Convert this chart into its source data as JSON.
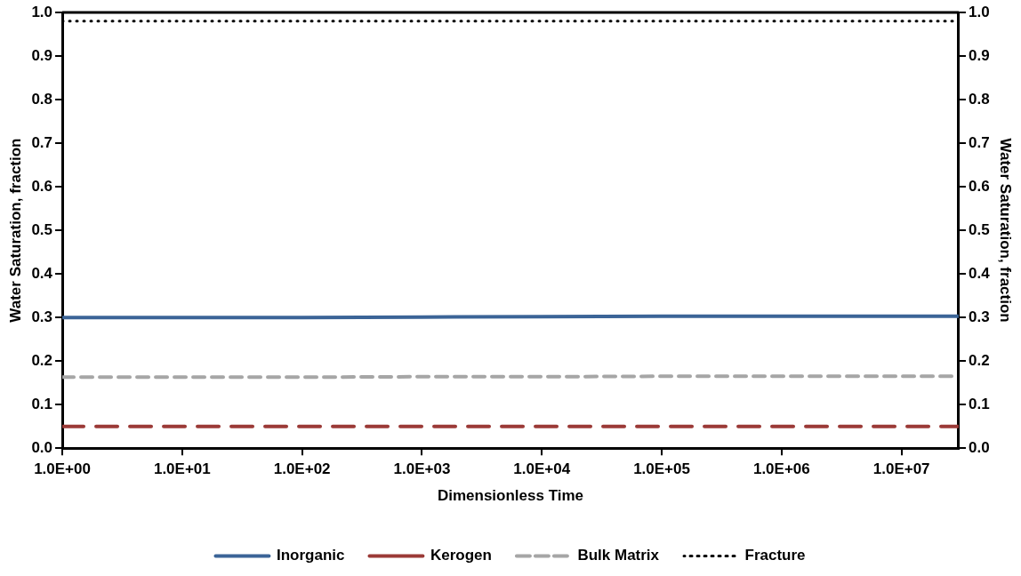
{
  "chart_data": {
    "type": "line",
    "xlabel": "Dimensionless Time",
    "ylabel": "Water Saturation, fraction",
    "y2label": "Water Saturation, fraction",
    "log": "x",
    "grid": false,
    "legend": "bottom",
    "marker": "none",
    "xlim": [
      1,
      30000000
    ],
    "xticks": [
      {
        "value": 1,
        "label": "1.0E+00"
      },
      {
        "value": 10,
        "label": "1.0E+01"
      },
      {
        "value": 100,
        "label": "1.0E+02"
      },
      {
        "value": 1000,
        "label": "1.0E+03"
      },
      {
        "value": 10000,
        "label": "1.0E+04"
      },
      {
        "value": 100000,
        "label": "1.0E+05"
      },
      {
        "value": 1000000,
        "label": "1.0E+06"
      },
      {
        "value": 10000000,
        "label": "1.0E+07"
      }
    ],
    "ylim": [
      0,
      1
    ],
    "yticks": [
      {
        "value": 0,
        "label": "0.0"
      },
      0.1,
      0.2,
      0.3,
      0.4,
      0.5,
      0.6,
      0.7,
      0.8,
      0.9,
      {
        "value": 1,
        "label": "1.0"
      }
    ],
    "y2lim": [
      0,
      1
    ],
    "y2ticks": [
      {
        "value": 0,
        "label": "0.0"
      },
      0.1,
      0.2,
      0.3,
      0.4,
      0.5,
      0.6,
      0.7,
      0.8,
      0.9,
      {
        "value": 1,
        "label": "1.0"
      }
    ],
    "x": [
      1,
      10,
      100,
      1000,
      10000,
      100000,
      1000000,
      10000000,
      30000000
    ],
    "series": [
      {
        "name": "Inorganic",
        "color": "#3b6497",
        "line_style": "solid",
        "values": [
          0.3,
          0.3,
          0.3,
          0.301,
          0.302,
          0.303,
          0.303,
          0.303,
          0.303
        ]
      },
      {
        "name": "Kerogen",
        "color": "#9b3a37",
        "line_style": "dashed",
        "values": [
          0.05,
          0.05,
          0.05,
          0.05,
          0.05,
          0.05,
          0.05,
          0.05,
          0.05
        ]
      },
      {
        "name": "Bulk Matrix",
        "color": "#a6a6a6",
        "line_style": "dashed",
        "values": [
          0.163,
          0.163,
          0.163,
          0.164,
          0.164,
          0.165,
          0.165,
          0.165,
          0.165
        ]
      },
      {
        "name": "Fracture",
        "color": "#000000",
        "line_style": "dotted",
        "values": [
          0.98,
          0.98,
          0.98,
          0.98,
          0.98,
          0.98,
          0.98,
          0.98,
          0.98
        ]
      }
    ]
  }
}
